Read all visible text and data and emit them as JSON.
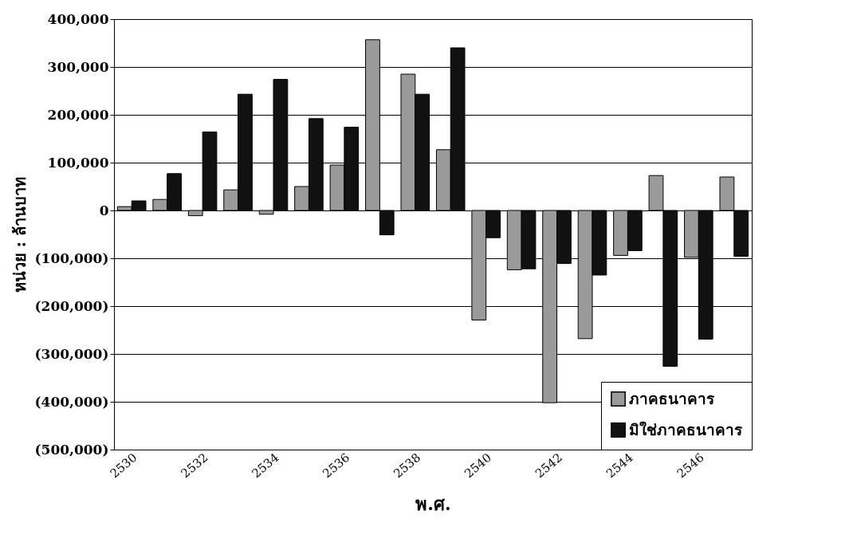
{
  "chart_data": {
    "type": "bar",
    "xlabel": "พ.ศ.",
    "ylabel": "หน่วย : ล้านบาท",
    "categories": [
      "2530",
      null,
      "2532",
      null,
      "2534",
      null,
      "2536",
      null,
      "2538",
      null,
      "2540",
      null,
      "2542",
      null,
      "2544",
      null,
      "2546",
      null
    ],
    "series": [
      {
        "name": "ภาคธนาคาร",
        "color": "#9a9a9a",
        "values": [
          8000,
          23000,
          -11000,
          43000,
          -8000,
          50000,
          95000,
          357000,
          285000,
          127000,
          -229000,
          -124000,
          -402000,
          -268000,
          -94000,
          73000,
          -98000,
          70000
        ]
      },
      {
        "name": "มิใช่ภาคธนาคาร",
        "color": "#111111",
        "values": [
          20000,
          77000,
          164000,
          243000,
          274000,
          192000,
          174000,
          -51000,
          243000,
          340000,
          -57000,
          -122000,
          -111000,
          -135000,
          -84000,
          -326000,
          -269000,
          -96000
        ]
      }
    ],
    "ylim": [
      -500000,
      400000
    ],
    "yticks": [
      {
        "value": -500000,
        "label": "(500,000)"
      },
      {
        "value": -400000,
        "label": "(400,000)"
      },
      {
        "value": -300000,
        "label": "(300,000)"
      },
      {
        "value": -200000,
        "label": "(200,000)"
      },
      {
        "value": -100000,
        "label": "(100,000)"
      },
      0,
      {
        "value": 100000,
        "label": "100,000"
      },
      {
        "value": 200000,
        "label": "200,000"
      },
      {
        "value": 300000,
        "label": "300,000"
      },
      {
        "value": 400000,
        "label": "400,000"
      }
    ],
    "grid": "y",
    "legend": "bottom right"
  }
}
